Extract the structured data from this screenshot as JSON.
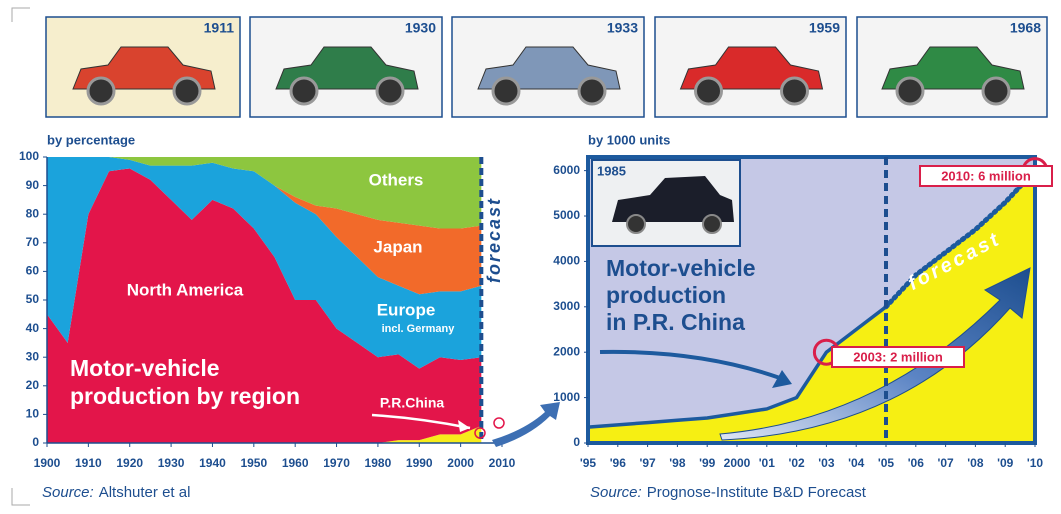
{
  "cars": [
    {
      "year": "1911"
    },
    {
      "year": "1930"
    },
    {
      "year": "1933"
    },
    {
      "year": "1959"
    },
    {
      "year": "1968"
    }
  ],
  "chart_data": [
    {
      "type": "stacked_area",
      "axis_title": "by percentage",
      "title": [
        "Motor-vehicle",
        "production by region"
      ],
      "x": [
        1900,
        1905,
        1910,
        1915,
        1920,
        1925,
        1930,
        1935,
        1940,
        1945,
        1950,
        1955,
        1960,
        1965,
        1970,
        1975,
        1980,
        1985,
        1990,
        1995,
        2000,
        2005
      ],
      "series": [
        {
          "name": "P.R.China",
          "color": "#f7ec1b",
          "values": [
            0,
            0,
            0,
            0,
            0,
            0,
            0,
            0,
            0,
            0,
            0,
            0,
            0,
            0,
            0,
            0,
            0,
            1,
            1,
            3,
            3,
            6
          ]
        },
        {
          "name": "North America",
          "color": "#e3154a",
          "values": [
            45,
            35,
            80,
            95,
            96,
            92,
            85,
            78,
            85,
            82,
            75,
            65,
            50,
            50,
            40,
            35,
            30,
            30,
            25,
            27,
            26,
            24
          ]
        },
        {
          "name": "Europe",
          "note": "incl. Germany",
          "color": "#1ba3dc",
          "values": [
            55,
            65,
            20,
            5,
            3,
            5,
            12,
            19,
            13,
            14,
            20,
            25,
            34,
            30,
            32,
            30,
            28,
            24,
            26,
            23,
            24,
            25
          ]
        },
        {
          "name": "Japan",
          "color": "#f26a2a",
          "values": [
            0,
            0,
            0,
            0,
            0,
            0,
            0,
            0,
            0,
            0,
            0,
            0,
            2,
            3,
            10,
            15,
            20,
            22,
            24,
            22,
            22,
            21
          ]
        },
        {
          "name": "Others",
          "color": "#8dc63f",
          "values": [
            0,
            0,
            0,
            0,
            1,
            3,
            3,
            3,
            2,
            4,
            5,
            10,
            14,
            17,
            18,
            20,
            22,
            23,
            24,
            25,
            25,
            24
          ]
        }
      ],
      "xlim": [
        1900,
        2010
      ],
      "xticks": [
        1900,
        1910,
        1920,
        1930,
        1940,
        1950,
        1960,
        1970,
        1980,
        1990,
        2000,
        2010
      ],
      "ylim": [
        0,
        100
      ],
      "yticks": [
        0,
        10,
        20,
        30,
        40,
        50,
        60,
        70,
        80,
        90,
        100
      ],
      "forecast_x": 2005,
      "forecast_label": "forecast",
      "source_label": "Source:",
      "source": "Altshuter et al"
    },
    {
      "type": "line",
      "axis_title": "by 1000 units",
      "title": [
        "Motor-vehicle",
        "production",
        "in P.R. China"
      ],
      "inset_label": "1985",
      "x": [
        1995,
        1996,
        1997,
        1998,
        1999,
        2000,
        2001,
        2002,
        2003,
        2004,
        2005,
        2006,
        2007,
        2008,
        2009,
        2010
      ],
      "series": [
        {
          "color": "#1d5a9e",
          "fill": "#f6ef13",
          "values": [
            350,
            400,
            450,
            500,
            550,
            650,
            750,
            1000,
            2000,
            2500,
            3000,
            null,
            null,
            null,
            null,
            null
          ]
        },
        {
          "name": "forecast",
          "color": "#1d5a9e",
          "fill": "#f6ef13",
          "dotted": true,
          "values": [
            null,
            null,
            null,
            null,
            null,
            null,
            null,
            null,
            null,
            null,
            3000,
            3700,
            4200,
            4700,
            5300,
            6000
          ]
        }
      ],
      "annotations": [
        {
          "text": "2003: 2 million",
          "x": 2003,
          "y": 2000
        },
        {
          "text": "2010: 6 million",
          "x": 2010,
          "y": 6000
        }
      ],
      "xlim": [
        1995,
        2010
      ],
      "xticks": [
        {
          "value": 1995,
          "label": "'95"
        },
        {
          "value": 1996,
          "label": "'96"
        },
        {
          "value": 1997,
          "label": "'97"
        },
        {
          "value": 1998,
          "label": "'98"
        },
        {
          "value": 1999,
          "label": "'99"
        },
        2000,
        {
          "value": 2001,
          "label": "'01"
        },
        {
          "value": 2002,
          "label": "'02"
        },
        {
          "value": 2003,
          "label": "'03"
        },
        {
          "value": 2004,
          "label": "'04"
        },
        {
          "value": 2005,
          "label": "'05"
        },
        {
          "value": 2006,
          "label": "'06"
        },
        {
          "value": 2007,
          "label": "'07"
        },
        {
          "value": 2008,
          "label": "'08"
        },
        {
          "value": 2009,
          "label": "'09"
        },
        {
          "value": 2010,
          "label": "'10"
        }
      ],
      "ylim": [
        0,
        6300
      ],
      "yticks": [
        0,
        1000,
        2000,
        3000,
        4000,
        5000,
        6000
      ],
      "forecast_x": 2005,
      "background": "#c5c8e6",
      "source_label": "Source:",
      "source": "Prognose-Institute B&D Forecast"
    }
  ]
}
